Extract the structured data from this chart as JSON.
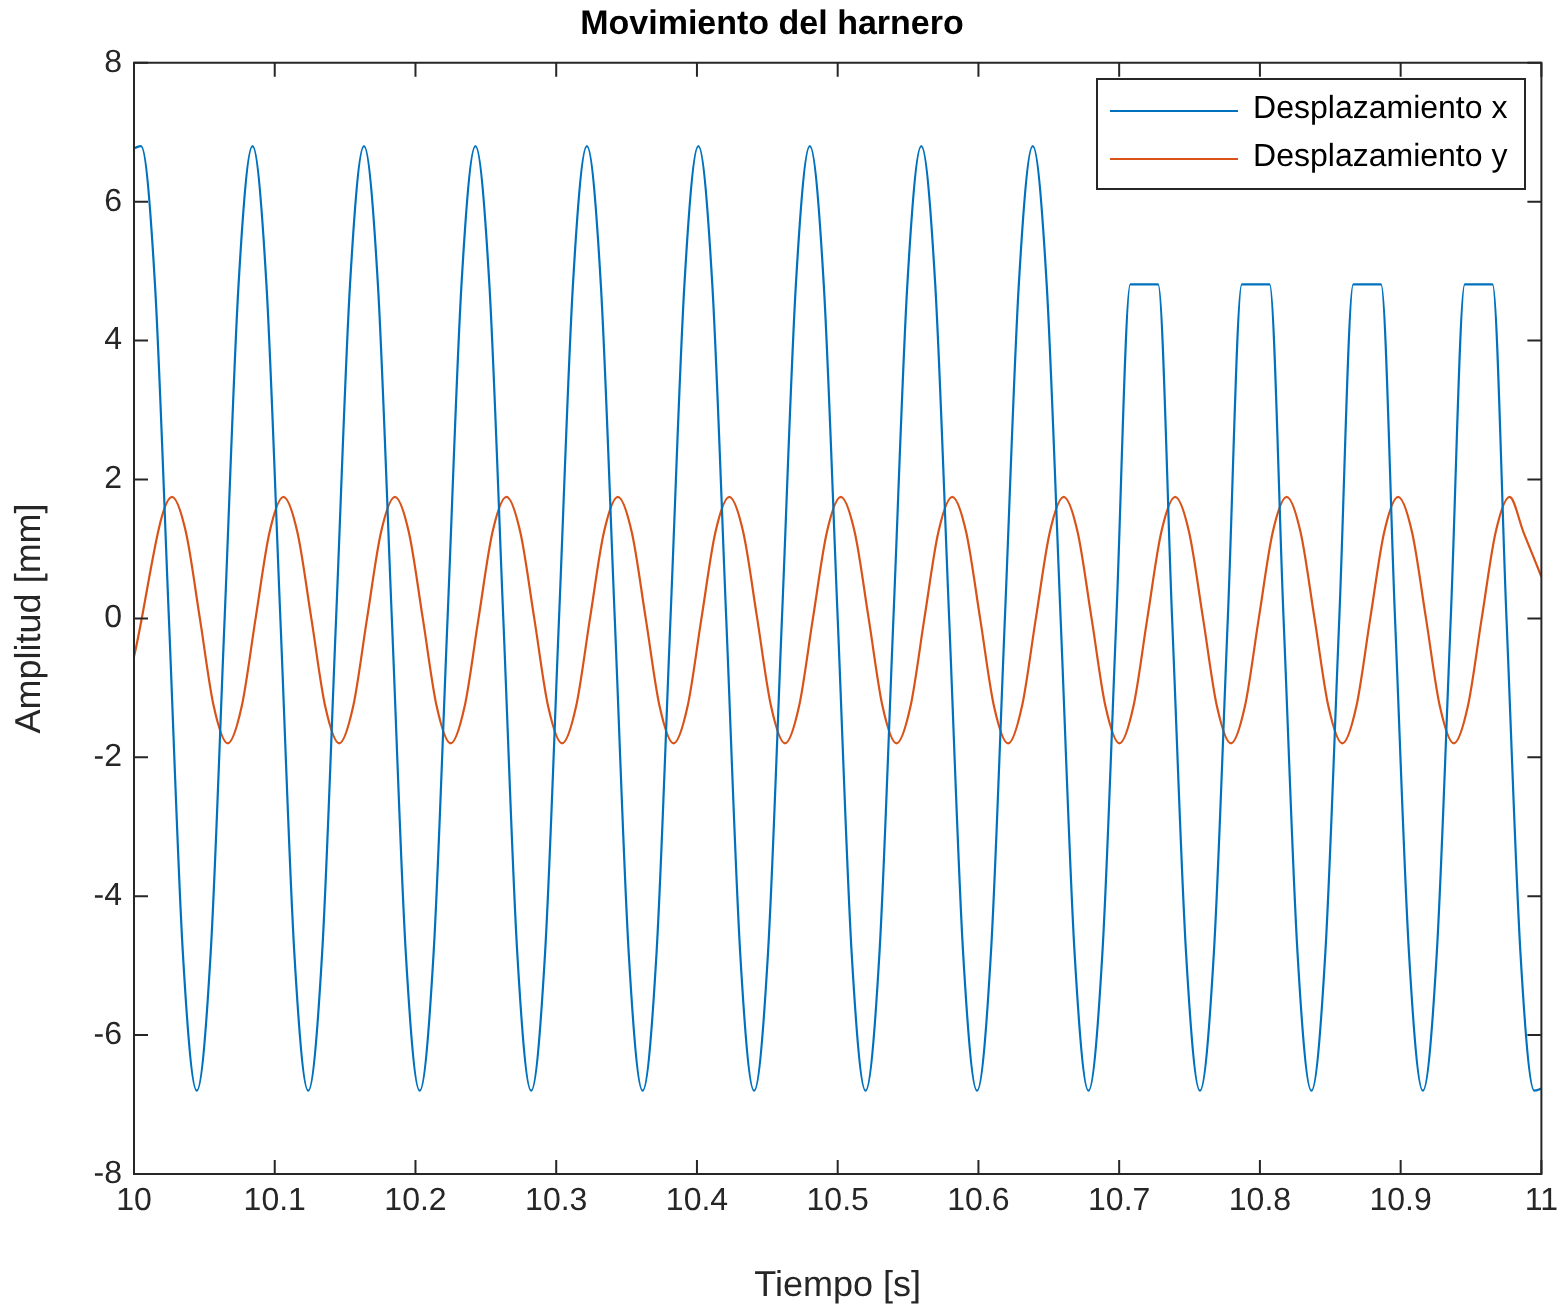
{
  "chart_data": {
    "type": "line",
    "title": "Movimiento del harnero",
    "xlabel": "Tiempo [s]",
    "ylabel": "Amplitud [mm]",
    "xlim": [
      10,
      11
    ],
    "xticks": [
      10,
      10.1,
      10.2,
      10.3,
      10.4,
      10.5,
      10.6,
      10.7,
      10.8,
      10.9,
      11
    ],
    "ylim": [
      -8,
      8
    ],
    "yticks": [
      -8,
      -6,
      -4,
      -2,
      0,
      2,
      4,
      6,
      8
    ],
    "grid": false,
    "legend": "top right",
    "line_style": "solid",
    "series": [
      {
        "name": "Desplazamiento x",
        "color": "#0072bd",
        "x": [
          10,
          10.005,
          10.0149,
          10.0248,
          10.0347,
          10.0446,
          10.0545,
          10.0644,
          10.0743,
          10.0842,
          10.0941,
          10.104,
          10.1139,
          10.1238,
          10.1337,
          10.1436,
          10.1535,
          10.1634,
          10.1733,
          10.1832,
          10.1931,
          10.203,
          10.2129,
          10.2228,
          10.2327,
          10.2426,
          10.2525,
          10.2624,
          10.2723,
          10.2822,
          10.2921,
          10.302,
          10.3119,
          10.3218,
          10.3317,
          10.3416,
          10.3515,
          10.3614,
          10.3713,
          10.3812,
          10.3911,
          10.401,
          10.4109,
          10.4208,
          10.4307,
          10.4406,
          10.4505,
          10.4604,
          10.4703,
          10.4802,
          10.4901,
          10.5,
          10.5099,
          10.5198,
          10.5297,
          10.5396,
          10.5495,
          10.5594,
          10.5693,
          10.5792,
          10.5891,
          10.599,
          10.6089,
          10.6188,
          10.6287,
          10.6386,
          10.6485,
          10.6584,
          10.6683,
          10.6782,
          10.6881,
          10.698,
          10.7079,
          10.7178,
          10.7277,
          10.7376,
          10.7475,
          10.7574,
          10.7673,
          10.7772,
          10.7871,
          10.797,
          10.8069,
          10.8168,
          10.8267,
          10.8366,
          10.8465,
          10.8564,
          10.8663,
          10.8762,
          10.8861,
          10.896,
          10.9059,
          10.9158,
          10.9257,
          10.9356,
          10.9455,
          10.9554,
          10.9653,
          10.9752,
          10.9851,
          10.995,
          11
        ],
        "values": [
          6.77,
          6.8,
          4.81,
          0,
          -4.81,
          -6.8,
          -4.81,
          0,
          4.81,
          6.8,
          4.81,
          0,
          -4.81,
          -6.8,
          -4.81,
          0,
          4.81,
          6.8,
          4.81,
          0,
          -4.81,
          -6.8,
          -4.81,
          0,
          4.81,
          6.8,
          4.81,
          0,
          -4.81,
          -6.8,
          -4.81,
          0,
          4.81,
          6.8,
          4.81,
          0,
          -4.81,
          -6.8,
          -4.81,
          0,
          4.81,
          6.8,
          4.81,
          0,
          -4.81,
          -6.8,
          -4.81,
          0,
          4.81,
          6.8,
          4.81,
          0,
          -4.81,
          -6.8,
          -4.81,
          0,
          4.81,
          6.8,
          4.81,
          0,
          -4.81,
          -6.8,
          -4.81,
          0,
          4.81,
          6.8,
          4.81,
          0,
          -4.81,
          -6.8,
          -4.81,
          0,
          4.81,
          null,
          4.81,
          0,
          -4.81,
          -6.8,
          -4.81,
          0,
          4.81,
          null,
          4.81,
          0,
          -4.81,
          -6.8,
          -4.81,
          0,
          4.81,
          null,
          4.81,
          0,
          -4.81,
          -6.8,
          -4.81,
          0,
          4.81,
          null,
          4.81,
          0,
          -4.81,
          -6.8,
          -6.77
        ]
      },
      {
        "name": "Desplazamiento y",
        "color": "#d95319",
        "x": [
          10,
          10.027,
          10.0369,
          10.0468,
          10.0567,
          10.0666,
          10.0765,
          10.0864,
          10.0963,
          10.1062,
          10.1161,
          10.126,
          10.1359,
          10.1458,
          10.1557,
          10.1656,
          10.1755,
          10.1854,
          10.1953,
          10.2052,
          10.2151,
          10.225,
          10.2349,
          10.2448,
          10.2547,
          10.2646,
          10.2745,
          10.2844,
          10.2943,
          10.3042,
          10.3141,
          10.324,
          10.3339,
          10.3438,
          10.3537,
          10.3636,
          10.3735,
          10.3834,
          10.3933,
          10.4032,
          10.4131,
          10.423,
          10.4329,
          10.4428,
          10.4527,
          10.4626,
          10.4725,
          10.4824,
          10.4923,
          10.5022,
          10.5121,
          10.522,
          10.5319,
          10.5418,
          10.5517,
          10.5616,
          10.5715,
          10.5814,
          10.5913,
          10.6012,
          10.6111,
          10.621,
          10.6309,
          10.6408,
          10.6507,
          10.6606,
          10.6705,
          10.6804,
          10.6903,
          10.7002,
          10.7101,
          10.72,
          10.7299,
          10.7398,
          10.7497,
          10.7596,
          10.7695,
          10.7794,
          10.7893,
          10.7992,
          10.8091,
          10.819,
          10.8289,
          10.8388,
          10.8487,
          10.8586,
          10.8685,
          10.8784,
          10.8883,
          10.8982,
          10.9081,
          10.918,
          10.9279,
          10.9378,
          10.9477,
          10.9576,
          10.9675,
          10.9774,
          10.9873,
          11
        ],
        "values": [
          -0.55,
          1.75,
          1.24,
          0,
          -1.27,
          -1.8,
          -1.27,
          0,
          1.24,
          1.75,
          1.24,
          0,
          -1.27,
          -1.8,
          -1.27,
          0,
          1.24,
          1.75,
          1.24,
          0,
          -1.27,
          -1.8,
          -1.27,
          0,
          1.24,
          1.75,
          1.24,
          0,
          -1.27,
          -1.8,
          -1.27,
          0,
          1.24,
          1.75,
          1.24,
          0,
          -1.27,
          -1.8,
          -1.27,
          0,
          1.24,
          1.75,
          1.24,
          0,
          -1.27,
          -1.8,
          -1.27,
          0,
          1.24,
          1.75,
          1.24,
          0,
          -1.27,
          -1.8,
          -1.27,
          0,
          1.24,
          1.75,
          1.24,
          0,
          -1.27,
          -1.8,
          -1.27,
          0,
          1.24,
          1.75,
          1.24,
          0,
          -1.27,
          -1.8,
          -1.27,
          0,
          1.24,
          1.75,
          1.24,
          0,
          -1.27,
          -1.8,
          -1.27,
          0,
          1.24,
          1.75,
          1.24,
          0,
          -1.27,
          -1.8,
          -1.27,
          0,
          1.24,
          1.75,
          1.24,
          0,
          -1.27,
          -1.8,
          -1.27,
          0,
          1.24,
          1.75,
          1.24,
          0.6
        ]
      }
    ]
  }
}
